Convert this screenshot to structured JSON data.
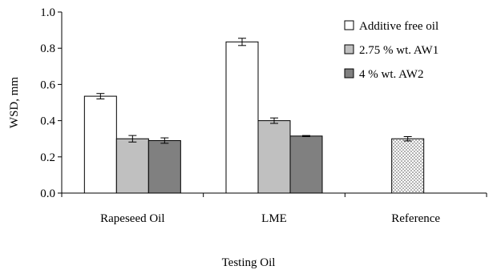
{
  "chart_data": {
    "type": "bar",
    "title": "",
    "xlabel": "Testing Oil",
    "ylabel": "WSD, mm",
    "ylim": [
      0,
      1.0
    ],
    "yticks": [
      "0.0",
      "0.2",
      "0.4",
      "0.6",
      "0.8",
      "1.0"
    ],
    "categories": [
      "Rapeseed Oil",
      "LME",
      "Reference"
    ],
    "grid": false,
    "legend_position": "top-right",
    "series": [
      {
        "name": "Additive free oil",
        "fill": "#ffffff",
        "values": [
          0.535,
          0.835,
          null
        ],
        "errors": [
          0.015,
          0.02,
          null
        ]
      },
      {
        "name": "2.75 % wt. AW1",
        "fill": "#c0c0c0",
        "values": [
          0.3,
          0.4,
          null
        ],
        "errors": [
          0.018,
          0.015,
          null
        ]
      },
      {
        "name": "4 % wt. AW2",
        "fill": "#808080",
        "values": [
          0.29,
          0.315,
          null
        ],
        "errors": [
          0.015,
          0.003,
          null
        ]
      }
    ],
    "reference": {
      "category": "Reference",
      "value": 0.3,
      "error": 0.012,
      "pattern": "dotted"
    }
  }
}
